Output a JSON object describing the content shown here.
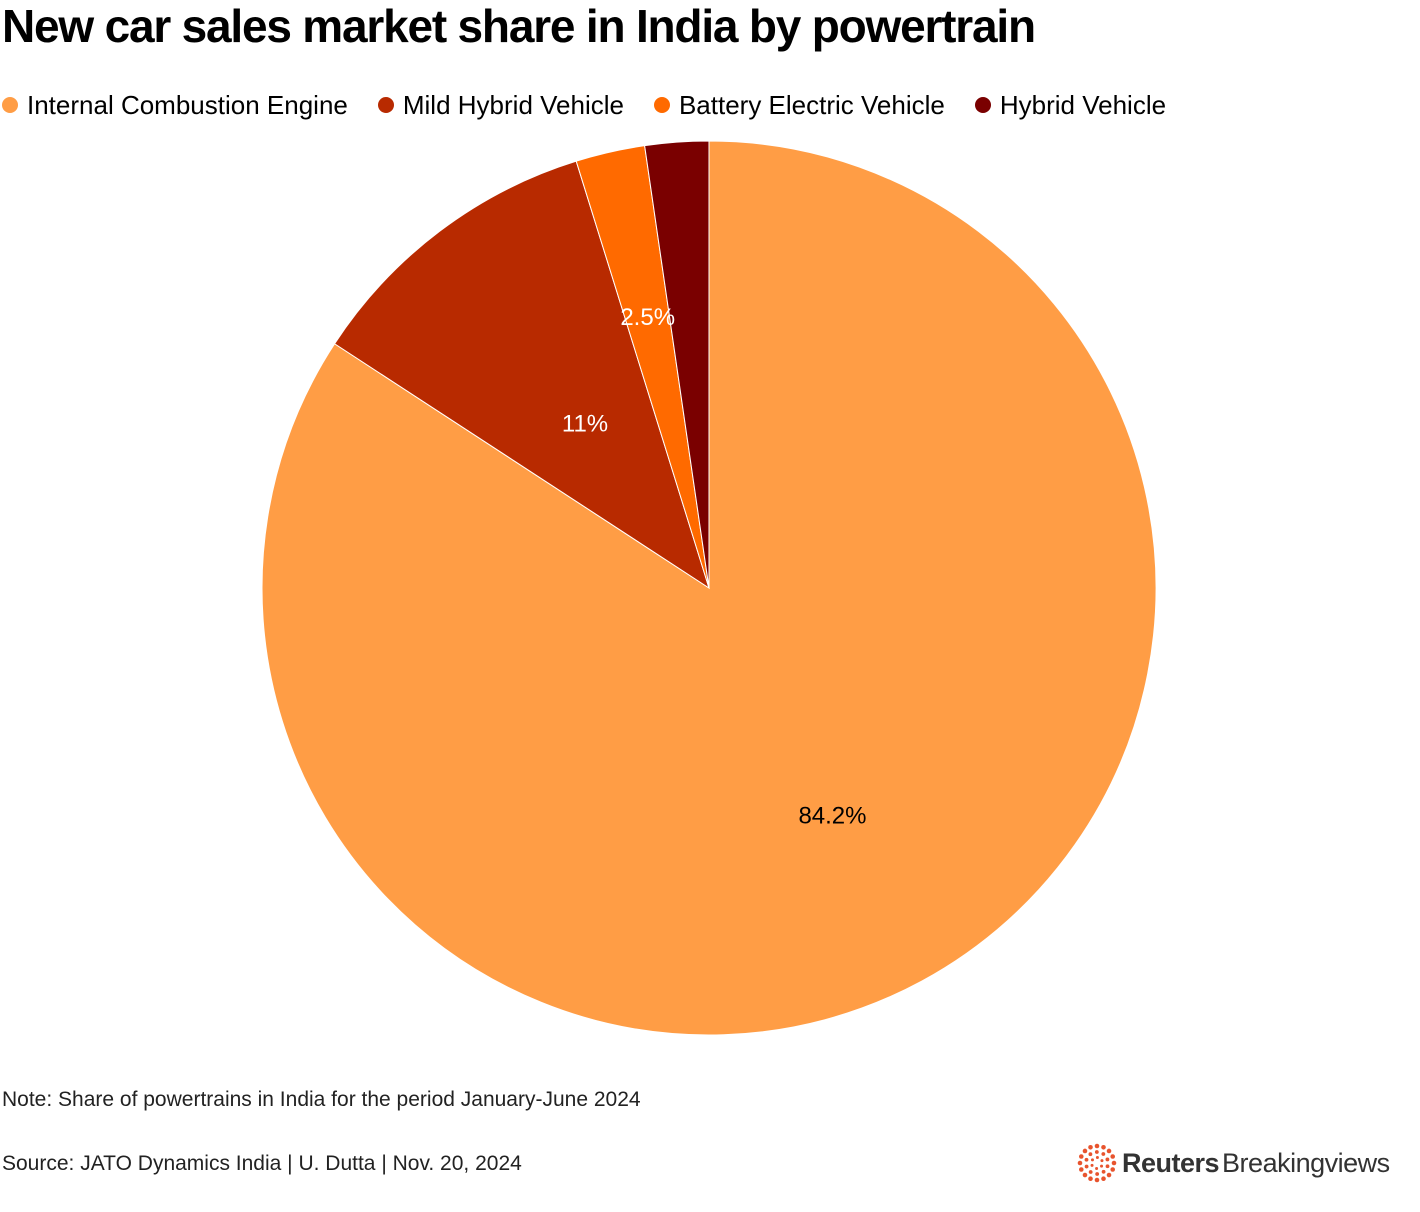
{
  "chart_data": {
    "type": "pie",
    "title": "New car sales market share in India by powertrain",
    "slices": [
      {
        "label": "Internal Combustion Engine",
        "value": 84.2,
        "display": "84.2%",
        "color": "#ff9d45",
        "label_color": "#000000"
      },
      {
        "label": "Mild Hybrid Vehicle",
        "value": 11,
        "display": "11%",
        "color": "#b82a00",
        "label_color": "#ffffff"
      },
      {
        "label": "Battery Electric Vehicle",
        "value": 2.5,
        "display": "2.5%",
        "color": "#ff6a00",
        "label_color": "#ffffff"
      },
      {
        "label": "Hybrid Vehicle",
        "value": 2.3,
        "display": "",
        "color": "#7a0000",
        "label_color": "#ffffff"
      }
    ],
    "legend_position": "top-left",
    "note": "Note: Share of powertrains in India for the period January-June 2024",
    "source": "Source: JATO Dynamics India | U. Dutta | Nov. 20, 2024"
  },
  "brand": {
    "name": "Reuters",
    "sub": "Breakingviews",
    "color": "#e8542e"
  }
}
